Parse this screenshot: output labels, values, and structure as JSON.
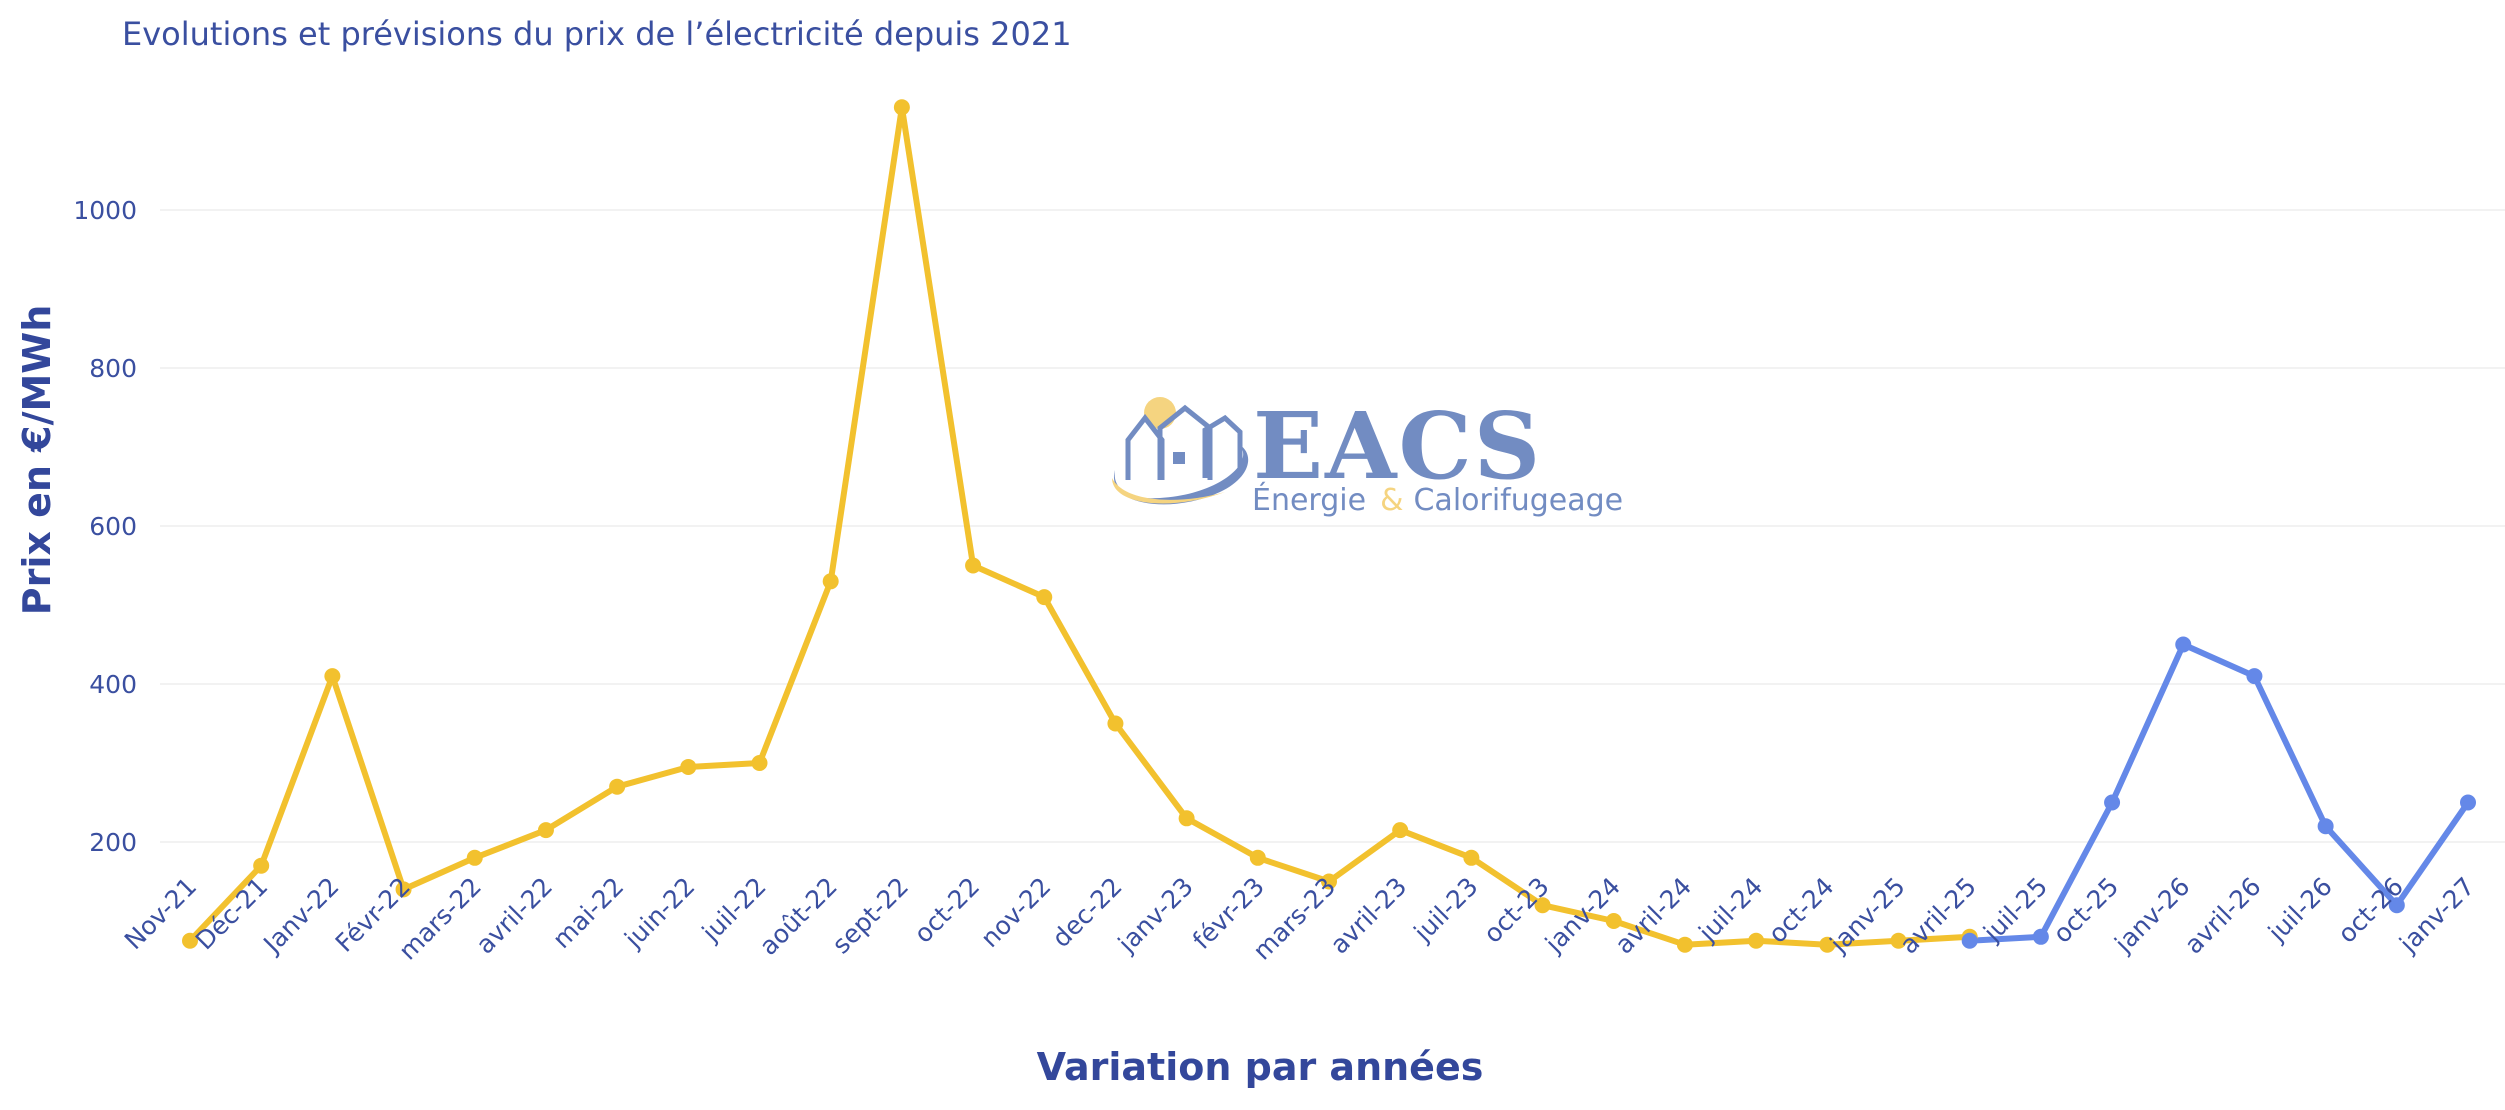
{
  "chart_data": {
    "type": "line",
    "title": "Evolutions et prévisions du prix de l’électricité depuis 2021",
    "xlabel": "Variation par années",
    "ylabel": "Prix en €/MWh",
    "ylim": [
      0,
      1150
    ],
    "yticks": [
      200,
      400,
      600,
      800,
      1000
    ],
    "grid": true,
    "categories": [
      "Nov-21",
      "Déc-21",
      "Janv-22",
      "Févr-22",
      "mars-22",
      "avril-22",
      "mai-22",
      "juin-22",
      "juil-22",
      "août-22",
      "sept-22",
      "oct-22",
      "nov-22",
      "dec-22",
      "janv-23",
      "févr-23",
      "mars-23",
      "avril-23",
      "juil-23",
      "oct-23",
      "janv-24",
      "avril-24",
      "juil-24",
      "oct-24",
      "janv-25",
      "avril-25",
      "juil-25",
      "oct-25",
      "janv-26",
      "avril-26",
      "juil-26",
      "oct-26",
      "janv-27"
    ],
    "series": [
      {
        "color": "#f2c12e",
        "values": [
          75,
          170,
          410,
          140,
          180,
          215,
          270,
          295,
          300,
          530,
          1130,
          550,
          510,
          350,
          230,
          180,
          150,
          215,
          180,
          120,
          100,
          70,
          75,
          70,
          75,
          80,
          null,
          null,
          null,
          null,
          null,
          null,
          null
        ]
      },
      {
        "color": "#6488e8",
        "values": [
          null,
          null,
          null,
          null,
          null,
          null,
          null,
          null,
          null,
          null,
          null,
          null,
          null,
          null,
          null,
          null,
          null,
          null,
          null,
          null,
          null,
          null,
          null,
          null,
          null,
          75,
          80,
          250,
          450,
          410,
          220,
          120,
          250
        ]
      }
    ]
  },
  "watermark": {
    "brand": "EACS",
    "tagline_part1": "Énergie",
    "tagline_amp": "&",
    "tagline_part2": "Calorifugeage"
  }
}
